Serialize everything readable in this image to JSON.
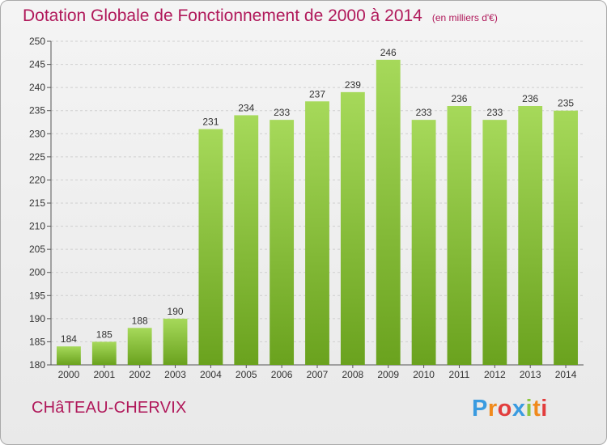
{
  "header": {
    "title": "Dotation Globale de Fonctionnement de 2000 à 2014",
    "unit": "(en milliers d'€)"
  },
  "footer": {
    "commune": "CHâTEAU-CHERVIX",
    "logo": {
      "letters": [
        "P",
        "r",
        "o",
        "x",
        "i",
        "t",
        "i"
      ],
      "colors": [
        "#3a9be0",
        "#f08a1c",
        "#e23d3d",
        "#3a9be0",
        "#8dc63f",
        "#f08a1c",
        "#e23d3d"
      ]
    }
  },
  "colors": {
    "bar_light": "#a6d95a",
    "bar_dark": "#6aa21e",
    "title": "#b0185a",
    "grid": "#cfcfcf"
  },
  "chart_data": {
    "type": "bar",
    "title": "Dotation Globale de Fonctionnement de 2000 à 2014",
    "subtitle": "(en milliers d'€)",
    "categories": [
      "2000",
      "2001",
      "2002",
      "2003",
      "2004",
      "2005",
      "2006",
      "2007",
      "2008",
      "2009",
      "2010",
      "2011",
      "2012",
      "2013",
      "2014"
    ],
    "values": [
      184,
      185,
      188,
      190,
      231,
      234,
      233,
      237,
      239,
      246,
      233,
      236,
      233,
      236,
      235
    ],
    "ylim": [
      180,
      250
    ],
    "yticks": [
      180,
      185,
      190,
      195,
      200,
      205,
      210,
      215,
      220,
      225,
      230,
      235,
      240,
      245,
      250
    ],
    "grid": true,
    "data_labels": true
  }
}
